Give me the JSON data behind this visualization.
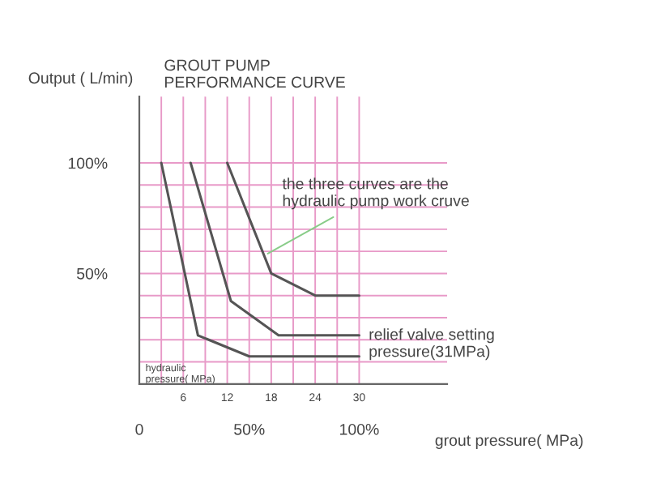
{
  "chart_data": {
    "type": "line",
    "title": "GROUT PUMP\nPERFORMANCE CURVE",
    "xlabel": "hydraulic\npressure( MPa)",
    "ylabel": "Output ( L/min)",
    "x2label": "grout pressure( MPa)",
    "series": [
      {
        "color": "#555555",
        "x": [
          3,
          8,
          15,
          30
        ],
        "values": [
          100,
          22,
          12.5,
          12.5
        ]
      },
      {
        "color": "#555555",
        "x": [
          7,
          12.5,
          19,
          30
        ],
        "values": [
          100,
          37.5,
          22,
          22
        ]
      },
      {
        "color": "#555555",
        "x": [
          12,
          18,
          24,
          30
        ],
        "values": [
          100,
          50,
          40,
          40
        ]
      }
    ],
    "xlim": [
      0,
      42
    ],
    "ylim": [
      0,
      130
    ],
    "xticks": [
      {
        "value": 3,
        "label": null
      },
      6,
      {
        "value": 9,
        "label": null
      },
      12,
      {
        "value": 15,
        "label": null
      },
      18,
      {
        "value": 21,
        "label": null
      },
      24,
      {
        "value": 27,
        "label": null
      },
      30
    ],
    "yticks": [
      {
        "value": 10,
        "label": null
      },
      {
        "value": 20,
        "label": null
      },
      {
        "value": 30,
        "label": null
      },
      {
        "value": 40,
        "label": null
      },
      {
        "value": 50,
        "label": "50%"
      },
      {
        "value": 60,
        "label": null
      },
      {
        "value": 70,
        "label": null
      },
      {
        "value": 80,
        "label": null
      },
      {
        "value": 90,
        "label": null
      },
      {
        "value": 100,
        "label": "100%"
      }
    ],
    "x2lim": [
      0,
      140
    ],
    "x2ticks": [
      {
        "value": 0,
        "label": "0"
      },
      {
        "value": 50,
        "label": "50%"
      },
      {
        "value": 100,
        "label": "100%"
      }
    ],
    "grid": true,
    "marker": "none",
    "line_style": "solid",
    "annotations": [
      {
        "text": "the three curves are the\nhydraulic pump work cruve",
        "x": 17,
        "y": 58
      },
      "relief valve setting\npressure(31MPa)"
    ]
  }
}
